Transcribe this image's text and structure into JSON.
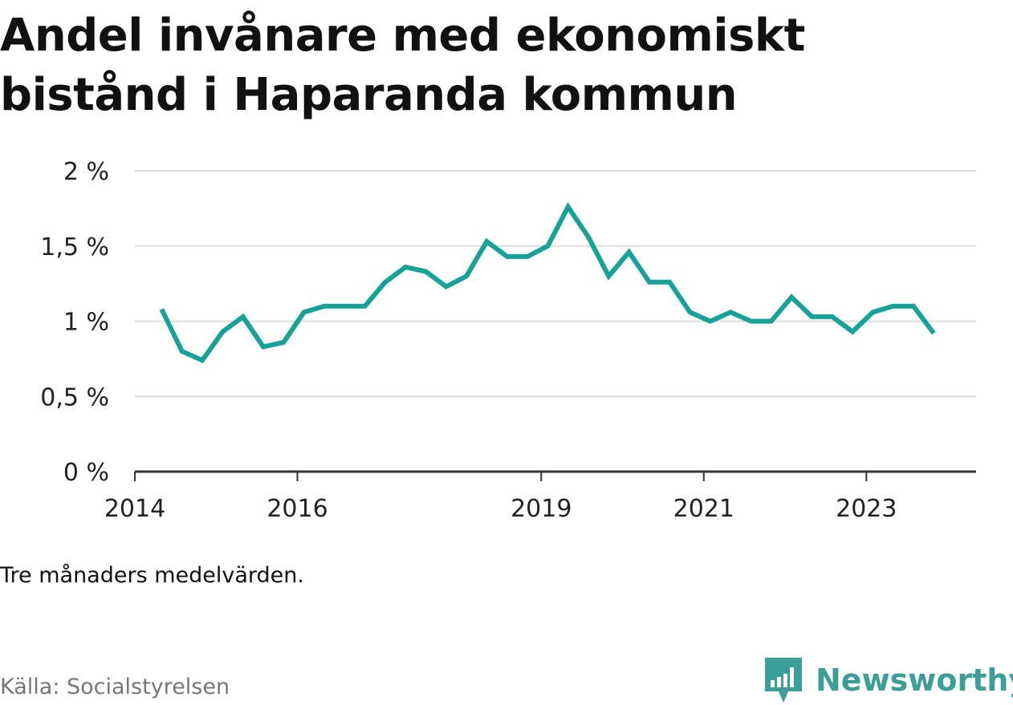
{
  "title": "Andel invånare med ekonomiskt bistånd i Haparanda kommun",
  "note": "Tre månaders medelvärden.",
  "source": "Källa: Socialstyrelsen",
  "brand": {
    "name": "Newsworthy",
    "icon": "bar-chart-badge-icon",
    "color": "#3b9e98"
  },
  "colors": {
    "line": "#16a296",
    "grid": "#dddddd",
    "axis": "#333333"
  },
  "chart_data": {
    "type": "line",
    "title": "Andel invånare med ekonomiskt bistånd i Haparanda kommun",
    "xlabel": "",
    "ylabel": "",
    "ylim": [
      0,
      2
    ],
    "xlim": [
      2014.0,
      2024.35
    ],
    "yticks": [
      {
        "value": 0,
        "label": "0 %"
      },
      {
        "value": 0.5,
        "label": "0,5 %"
      },
      {
        "value": 1,
        "label": "1 %"
      },
      {
        "value": 1.5,
        "label": "1,5 %"
      },
      {
        "value": 2,
        "label": "2 %"
      }
    ],
    "xticks": [
      {
        "value": 2014,
        "label": "2014"
      },
      {
        "value": 2016,
        "label": "2016"
      },
      {
        "value": 2019,
        "label": "2019"
      },
      {
        "value": 2021,
        "label": "2021"
      },
      {
        "value": 2023,
        "label": "2023"
      }
    ],
    "grid": true,
    "legend": "none",
    "series": [
      {
        "x": [
          2014.33,
          2014.58,
          2014.83,
          2015.08,
          2015.33,
          2015.58,
          2015.83,
          2016.08,
          2016.33,
          2016.58,
          2016.83,
          2017.08,
          2017.33,
          2017.58,
          2017.83,
          2018.08,
          2018.33,
          2018.58,
          2018.83,
          2019.08,
          2019.33,
          2019.58,
          2019.83,
          2020.08,
          2020.33,
          2020.58,
          2020.83,
          2021.08,
          2021.33,
          2021.58,
          2021.83,
          2022.08,
          2022.33,
          2022.58,
          2022.83,
          2023.08,
          2023.33,
          2023.58,
          2023.83
        ],
        "values": [
          1.08,
          0.8,
          0.74,
          0.93,
          1.03,
          0.83,
          0.86,
          1.06,
          1.1,
          1.1,
          1.1,
          1.26,
          1.36,
          1.33,
          1.23,
          1.3,
          1.53,
          1.43,
          1.43,
          1.5,
          1.76,
          1.56,
          1.3,
          1.46,
          1.26,
          1.26,
          1.06,
          1.0,
          1.06,
          1.0,
          1.0,
          1.16,
          1.03,
          1.03,
          0.93,
          1.06,
          1.1,
          1.1,
          0.92
        ]
      }
    ]
  }
}
